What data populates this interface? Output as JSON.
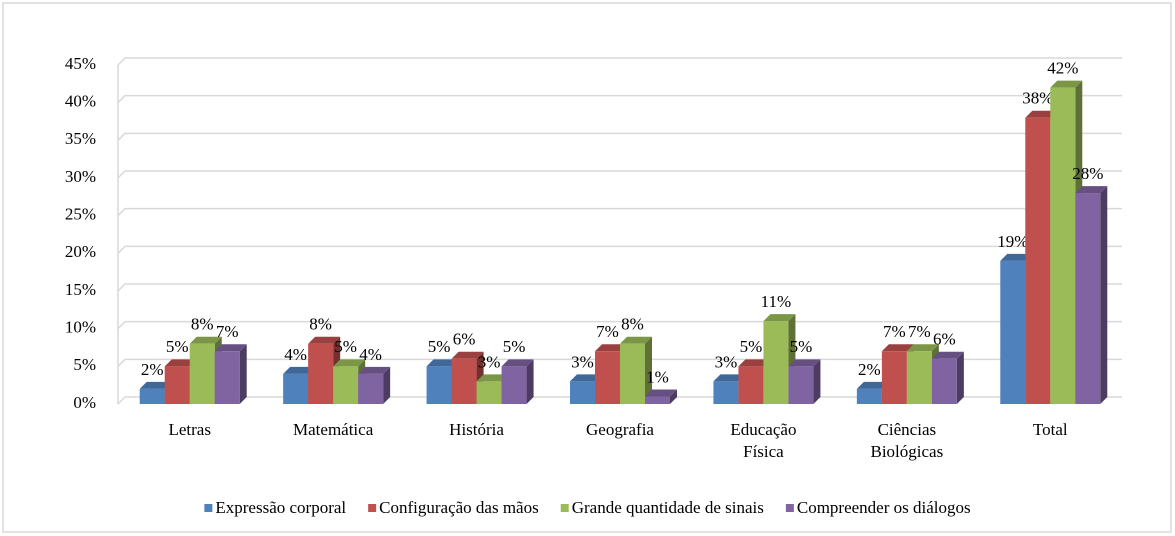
{
  "chart_data": {
    "type": "bar",
    "categories": [
      "Letras",
      "Matemática",
      "História",
      "Geografia",
      "Educação Física",
      "Ciências Biológicas",
      "Total"
    ],
    "series": [
      {
        "name": "Expressão corporal",
        "color": "#4f81bd",
        "values": [
          2,
          4,
          5,
          3,
          3,
          2,
          19
        ],
        "value_labels": [
          "2%",
          "4%",
          "5%",
          "3%",
          "3%",
          "2%",
          "19%"
        ]
      },
      {
        "name": "Configuração das mãos",
        "color": "#c0504d",
        "values": [
          5,
          8,
          6,
          7,
          5,
          7,
          38
        ],
        "value_labels": [
          "5%",
          "8%",
          "6%",
          "7%",
          "5%",
          "7%",
          "38%"
        ]
      },
      {
        "name": "Grande quantidade de sinais",
        "color": "#9bbb59",
        "values": [
          8,
          5,
          3,
          8,
          11,
          7,
          42
        ],
        "value_labels": [
          "8%",
          "5%",
          "3%",
          "8%",
          "11%",
          "7%",
          "42%"
        ]
      },
      {
        "name": "Compreender os diálogos",
        "color": "#8064a2",
        "values": [
          7,
          4,
          5,
          1,
          5,
          6,
          28
        ],
        "value_labels": [
          "7%",
          "4%",
          "5%",
          "1%",
          "5%",
          "6%",
          "28%"
        ]
      }
    ],
    "ylim": [
      0,
      45
    ],
    "yticks": [
      {
        "value": 0,
        "label": "0%"
      },
      {
        "value": 5,
        "label": "5%"
      },
      {
        "value": 10,
        "label": "10%"
      },
      {
        "value": 15,
        "label": "15%"
      },
      {
        "value": 20,
        "label": "20%"
      },
      {
        "value": 25,
        "label": "25%"
      },
      {
        "value": 30,
        "label": "30%"
      },
      {
        "value": 35,
        "label": "35%"
      },
      {
        "value": 40,
        "label": "40%"
      },
      {
        "value": 45,
        "label": "45%"
      }
    ],
    "grid": true,
    "legend": "bottom"
  }
}
